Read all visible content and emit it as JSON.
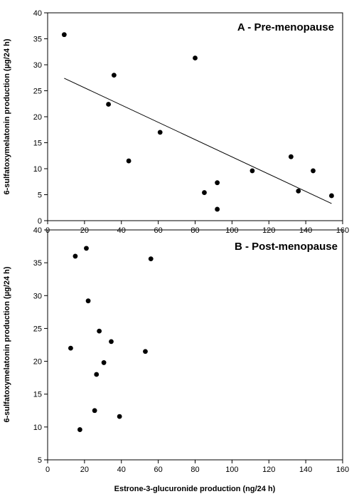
{
  "chart_data": [
    {
      "type": "scatter",
      "title": "A - Pre-menopause",
      "xlabel": "",
      "ylabel": "6-sulfatoxymelatonin production (µg/24 h)",
      "xlim": [
        0,
        160
      ],
      "ylim": [
        0,
        40
      ],
      "xticks": [
        "0",
        "20",
        "40",
        "60",
        "80",
        "100",
        "120",
        "140",
        "160"
      ],
      "yticks": [
        "0",
        "5",
        "10",
        "15",
        "20",
        "25",
        "30",
        "35",
        "40"
      ],
      "grid": false,
      "points": [
        {
          "x": 9,
          "y": 35.8
        },
        {
          "x": 33,
          "y": 22.4
        },
        {
          "x": 36,
          "y": 28.0
        },
        {
          "x": 44,
          "y": 11.5
        },
        {
          "x": 61,
          "y": 17.0
        },
        {
          "x": 80,
          "y": 31.3
        },
        {
          "x": 85,
          "y": 5.4
        },
        {
          "x": 92,
          "y": 7.3
        },
        {
          "x": 92,
          "y": 2.2
        },
        {
          "x": 111,
          "y": 9.6
        },
        {
          "x": 132,
          "y": 12.3
        },
        {
          "x": 136,
          "y": 5.7
        },
        {
          "x": 144,
          "y": 9.6
        },
        {
          "x": 154,
          "y": 4.8
        }
      ],
      "trendline": {
        "x": [
          9,
          154
        ],
        "y": [
          27.4,
          3.3
        ]
      }
    },
    {
      "type": "scatter",
      "title": "B - Post-menopause",
      "xlabel": "Estrone-3-glucuronide production (ng/24 h)",
      "ylabel": "6-sulfatoxymelatonin production (µg/24 h)",
      "xlim": [
        0,
        160
      ],
      "ylim": [
        5,
        40
      ],
      "xticks": [
        "0",
        "20",
        "40",
        "60",
        "80",
        "100",
        "120",
        "140",
        "160"
      ],
      "yticks": [
        "5",
        "10",
        "15",
        "20",
        "25",
        "30",
        "35",
        "40"
      ],
      "grid": false,
      "points": [
        {
          "x": 12.5,
          "y": 22.0
        },
        {
          "x": 15,
          "y": 36.0
        },
        {
          "x": 17.5,
          "y": 9.6
        },
        {
          "x": 21,
          "y": 37.2
        },
        {
          "x": 22,
          "y": 29.2
        },
        {
          "x": 25.5,
          "y": 12.5
        },
        {
          "x": 26.5,
          "y": 18.0
        },
        {
          "x": 28,
          "y": 24.6
        },
        {
          "x": 30.5,
          "y": 19.8
        },
        {
          "x": 34.5,
          "y": 23.0
        },
        {
          "x": 39,
          "y": 11.6
        },
        {
          "x": 53,
          "y": 21.5
        },
        {
          "x": 56,
          "y": 35.6
        }
      ]
    }
  ]
}
